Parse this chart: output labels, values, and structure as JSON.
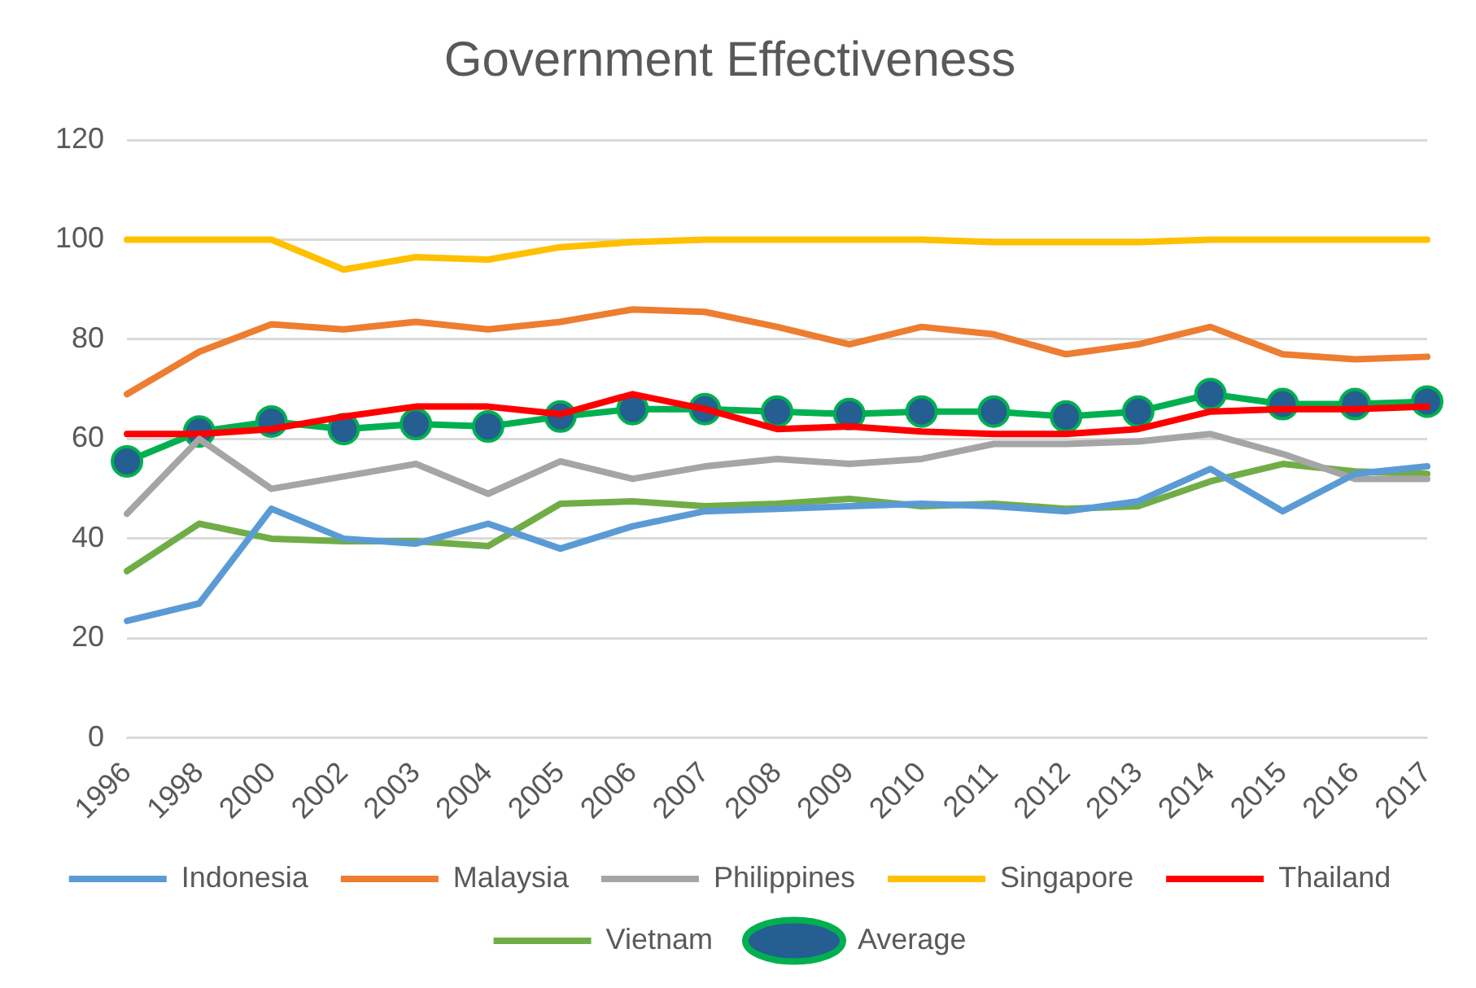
{
  "chart_data": {
    "type": "line",
    "title": "Government Effectiveness",
    "categories": [
      "1996",
      "1998",
      "2000",
      "2002",
      "2003",
      "2004",
      "2005",
      "2006",
      "2007",
      "2008",
      "2009",
      "2010",
      "2011",
      "2012",
      "2013",
      "2014",
      "2015",
      "2016",
      "2017"
    ],
    "series": [
      {
        "name": "Indonesia",
        "color": "#5b9bd5",
        "marker": "none",
        "values": [
          23.5,
          27,
          46,
          40,
          39,
          43,
          38,
          42.5,
          45.5,
          46,
          46.5,
          47,
          46.5,
          45.5,
          47.5,
          54,
          45.5,
          53,
          54.5
        ]
      },
      {
        "name": "Malaysia",
        "color": "#ed7d31",
        "marker": "none",
        "values": [
          69,
          77.5,
          83,
          82,
          83.5,
          82,
          83.5,
          86,
          85.5,
          82.5,
          79,
          82.5,
          81,
          77,
          79,
          82.5,
          77,
          76,
          76.5
        ]
      },
      {
        "name": "Philippines",
        "color": "#a5a5a5",
        "marker": "none",
        "values": [
          45,
          60,
          50,
          52.5,
          55,
          49,
          55.5,
          52,
          54.5,
          56,
          55,
          56,
          59,
          59,
          59.5,
          61,
          57,
          52,
          52
        ]
      },
      {
        "name": "Singapore",
        "color": "#ffc000",
        "marker": "none",
        "values": [
          100,
          100,
          100,
          94,
          96.5,
          96,
          98.5,
          99.5,
          100,
          100,
          100,
          100,
          99.5,
          99.5,
          99.5,
          100,
          100,
          100,
          100
        ]
      },
      {
        "name": "Thailand",
        "color": "#ff0000",
        "marker": "none",
        "values": [
          61,
          61,
          62,
          64.5,
          66.5,
          66.5,
          65,
          69,
          66,
          62,
          62.5,
          61.5,
          61,
          61,
          62,
          65.5,
          66,
          66,
          66.5
        ]
      },
      {
        "name": "Vietnam",
        "color": "#70ad47",
        "marker": "none",
        "values": [
          33.5,
          43,
          40,
          39.5,
          39.5,
          38.5,
          47,
          47.5,
          46.5,
          47,
          48,
          46.5,
          47,
          46,
          46.5,
          51.5,
          55,
          53.5,
          53
        ]
      },
      {
        "name": "Average",
        "color": "#00b050",
        "marker": "circle",
        "values": [
          55.5,
          61.5,
          63.5,
          62,
          63,
          62.5,
          64.5,
          66,
          66,
          65.5,
          65,
          65.5,
          65.5,
          64.5,
          65.5,
          69,
          67,
          67,
          67.5
        ]
      }
    ],
    "ylim": [
      0,
      120
    ],
    "yticks": [
      0,
      20,
      40,
      60,
      80,
      100,
      120
    ],
    "grid": "y",
    "legend": "bottom",
    "line_style": "solid"
  }
}
